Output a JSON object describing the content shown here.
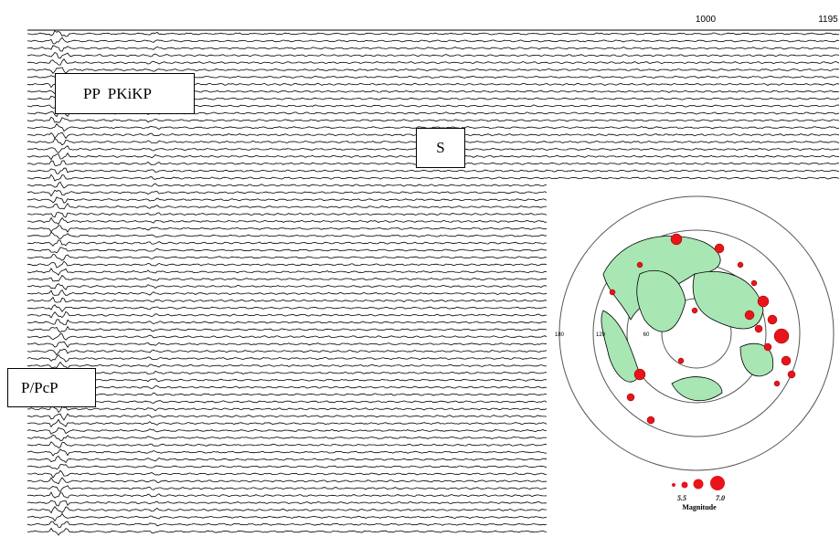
{
  "axis": {
    "ticks": [
      "1000",
      "1195"
    ]
  },
  "phases": {
    "pp": "PP  PKiKP",
    "s": "S",
    "p": "P/PcP"
  },
  "map": {
    "labels": [
      "180",
      "120",
      "60"
    ],
    "legend": {
      "min": "5.5",
      "max": "7.0",
      "title": "Magnitude"
    }
  }
}
